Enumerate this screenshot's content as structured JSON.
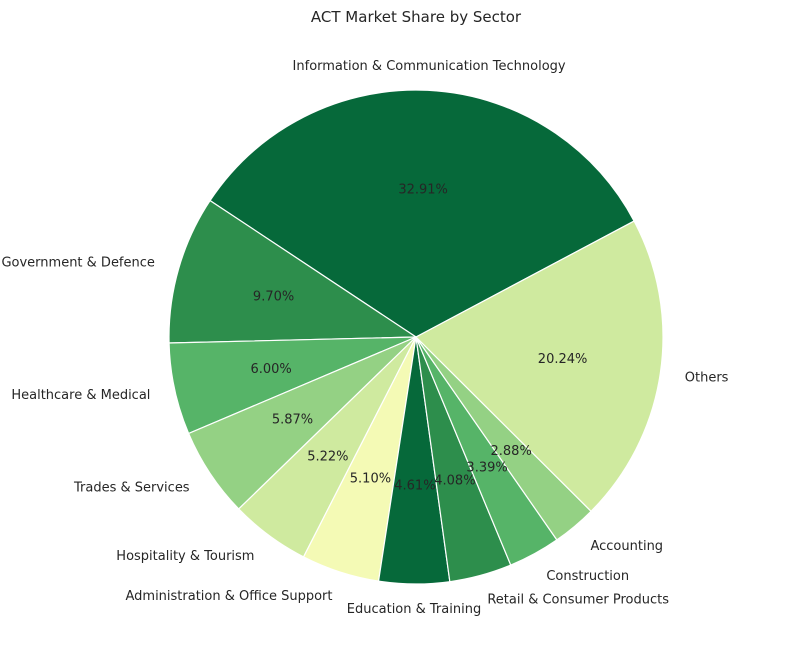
{
  "chart_data": {
    "type": "pie",
    "title": "ACT Market Share by Sector",
    "slices": [
      {
        "label": "Information & Communication Technology",
        "value": 32.91,
        "pct_label": "32.91%",
        "color": "#06693a"
      },
      {
        "label": "Government & Defence",
        "value": 9.7,
        "pct_label": "9.70%",
        "color": "#2d8e4c"
      },
      {
        "label": "Healthcare & Medical",
        "value": 6.0,
        "pct_label": "6.00%",
        "color": "#56b468"
      },
      {
        "label": "Trades & Services",
        "value": 5.87,
        "pct_label": "5.87%",
        "color": "#94d184"
      },
      {
        "label": "Hospitality & Tourism",
        "value": 5.22,
        "pct_label": "5.22%",
        "color": "#cfea9f"
      },
      {
        "label": "Administration & Office Support",
        "value": 5.1,
        "pct_label": "5.10%",
        "color": "#f4fab5"
      },
      {
        "label": "Education & Training",
        "value": 4.61,
        "pct_label": "4.61%",
        "color": "#06693a"
      },
      {
        "label": "Retail & Consumer Products",
        "value": 4.08,
        "pct_label": "4.08%",
        "color": "#2d8e4c"
      },
      {
        "label": "Construction",
        "value": 3.39,
        "pct_label": "3.39%",
        "color": "#56b468"
      },
      {
        "label": "Accounting",
        "value": 2.88,
        "pct_label": "2.88%",
        "color": "#94d184"
      },
      {
        "label": "Others",
        "value": 20.24,
        "pct_label": "20.24%",
        "color": "#cfea9f"
      }
    ],
    "start_angle_deg": 28,
    "direction": "counterclockwise",
    "legend": "none"
  }
}
